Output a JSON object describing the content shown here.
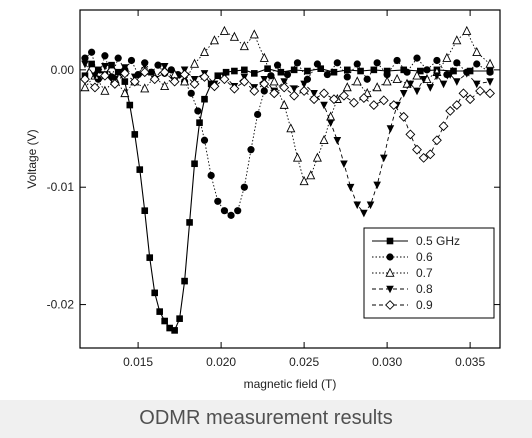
{
  "caption": "ODMR measurement results",
  "chart_data": {
    "type": "line",
    "title": "",
    "xlabel": "magnetic field (T)",
    "ylabel": "Voltage (V)",
    "xlim": [
      0.0115,
      0.0368
    ],
    "ylim": [
      -0.0237,
      0.0051
    ],
    "x_ticks": [
      0.015,
      0.02,
      0.025,
      0.03,
      0.035
    ],
    "x_tick_labels": [
      "0.015",
      "0.020",
      "0.025",
      "0.030",
      "0.035"
    ],
    "y_ticks": [
      0.0,
      -0.01,
      -0.02
    ],
    "y_tick_labels": [
      "0.00",
      "-0.01",
      "-0.02"
    ],
    "grid": false,
    "legend_position": "lower-right",
    "series": [
      {
        "name": "0.5 GHz",
        "marker": "square-filled",
        "dash": "solid",
        "points": [
          [
            0.0118,
            -0.0005
          ],
          [
            0.0122,
            0.0005
          ],
          [
            0.0126,
            0.0
          ],
          [
            0.013,
            -0.0004
          ],
          [
            0.0134,
            0.0004
          ],
          [
            0.0138,
            -0.0002
          ],
          [
            0.0142,
            -0.001
          ],
          [
            0.0145,
            -0.003
          ],
          [
            0.0148,
            -0.0055
          ],
          [
            0.0151,
            -0.0085
          ],
          [
            0.0154,
            -0.012
          ],
          [
            0.0157,
            -0.016
          ],
          [
            0.016,
            -0.019
          ],
          [
            0.0163,
            -0.0206
          ],
          [
            0.0166,
            -0.0214
          ],
          [
            0.0169,
            -0.022
          ],
          [
            0.0172,
            -0.0222
          ],
          [
            0.0175,
            -0.0212
          ],
          [
            0.0178,
            -0.018
          ],
          [
            0.0181,
            -0.013
          ],
          [
            0.0184,
            -0.008
          ],
          [
            0.0187,
            -0.0045
          ],
          [
            0.019,
            -0.0025
          ],
          [
            0.0194,
            -0.0012
          ],
          [
            0.0198,
            -0.0005
          ],
          [
            0.0203,
            -0.0002
          ],
          [
            0.0208,
            -0.0001
          ],
          [
            0.0214,
            0.0
          ],
          [
            0.022,
            -0.0003
          ],
          [
            0.0228,
            0.0001
          ],
          [
            0.0236,
            -0.0002
          ],
          [
            0.0244,
            0.0
          ],
          [
            0.0252,
            -0.0001
          ],
          [
            0.026,
            0.0001
          ],
          [
            0.0268,
            -0.0002
          ],
          [
            0.0276,
            0.0
          ],
          [
            0.0284,
            -0.0001
          ],
          [
            0.0292,
            0.0
          ],
          [
            0.03,
            -0.0001
          ],
          [
            0.031,
            0.0
          ],
          [
            0.032,
            -0.0001
          ],
          [
            0.033,
            0.0
          ],
          [
            0.034,
            -0.0001
          ],
          [
            0.035,
            -0.0001
          ],
          [
            0.0362,
            -0.0001
          ]
        ]
      },
      {
        "name": "0.6",
        "marker": "circle-filled",
        "dash": "dotted",
        "points": [
          [
            0.0118,
            0.001
          ],
          [
            0.0122,
            0.0015
          ],
          [
            0.0126,
            -0.0008
          ],
          [
            0.013,
            0.0012
          ],
          [
            0.0134,
            -0.0006
          ],
          [
            0.0138,
            0.001
          ],
          [
            0.0142,
            0.0
          ],
          [
            0.0146,
            0.0008
          ],
          [
            0.015,
            -0.0004
          ],
          [
            0.0154,
            0.0006
          ],
          [
            0.0158,
            -0.0002
          ],
          [
            0.0162,
            0.0004
          ],
          [
            0.0166,
            -0.0003
          ],
          [
            0.017,
            0.0
          ],
          [
            0.0174,
            -0.0004
          ],
          [
            0.0178,
            -0.001
          ],
          [
            0.0182,
            -0.002
          ],
          [
            0.0186,
            -0.0035
          ],
          [
            0.019,
            -0.006
          ],
          [
            0.0194,
            -0.009
          ],
          [
            0.0198,
            -0.0112
          ],
          [
            0.0202,
            -0.012
          ],
          [
            0.0206,
            -0.0124
          ],
          [
            0.021,
            -0.012
          ],
          [
            0.0214,
            -0.01
          ],
          [
            0.0218,
            -0.0068
          ],
          [
            0.0222,
            -0.0038
          ],
          [
            0.0226,
            -0.0018
          ],
          [
            0.023,
            -0.0005
          ],
          [
            0.0234,
            0.0004
          ],
          [
            0.024,
            -0.0004
          ],
          [
            0.0246,
            0.0006
          ],
          [
            0.0252,
            -0.0008
          ],
          [
            0.0258,
            0.0005
          ],
          [
            0.0264,
            -0.0004
          ],
          [
            0.027,
            0.0006
          ],
          [
            0.0276,
            -0.0006
          ],
          [
            0.0282,
            0.0005
          ],
          [
            0.0288,
            -0.0008
          ],
          [
            0.0294,
            0.0006
          ],
          [
            0.03,
            -0.0004
          ],
          [
            0.0306,
            0.0008
          ],
          [
            0.0312,
            -0.0002
          ],
          [
            0.0318,
            0.001
          ],
          [
            0.0324,
            0.0
          ],
          [
            0.033,
            0.0008
          ],
          [
            0.0336,
            -0.0004
          ],
          [
            0.0342,
            0.0006
          ],
          [
            0.0348,
            -0.0002
          ],
          [
            0.0354,
            0.0005
          ],
          [
            0.0362,
            -0.0002
          ]
        ]
      },
      {
        "name": "0.7",
        "marker": "triangle-open",
        "dash": "dotted",
        "points": [
          [
            0.0118,
            -0.0015
          ],
          [
            0.0124,
            -0.0005
          ],
          [
            0.013,
            -0.0018
          ],
          [
            0.0136,
            -0.0008
          ],
          [
            0.0142,
            -0.002
          ],
          [
            0.0148,
            -0.001
          ],
          [
            0.0154,
            -0.0016
          ],
          [
            0.016,
            -0.0006
          ],
          [
            0.0166,
            -0.0014
          ],
          [
            0.0172,
            -0.0004
          ],
          [
            0.0178,
            -0.001
          ],
          [
            0.0184,
            0.0005
          ],
          [
            0.019,
            0.0015
          ],
          [
            0.0196,
            0.0025
          ],
          [
            0.0202,
            0.0033
          ],
          [
            0.0208,
            0.0028
          ],
          [
            0.0214,
            0.002
          ],
          [
            0.022,
            0.003
          ],
          [
            0.0226,
            0.001
          ],
          [
            0.0232,
            -0.001
          ],
          [
            0.0238,
            -0.003
          ],
          [
            0.0242,
            -0.005
          ],
          [
            0.0246,
            -0.0075
          ],
          [
            0.025,
            -0.0095
          ],
          [
            0.0254,
            -0.009
          ],
          [
            0.0258,
            -0.0075
          ],
          [
            0.0262,
            -0.006
          ],
          [
            0.0266,
            -0.004
          ],
          [
            0.027,
            -0.0025
          ],
          [
            0.0276,
            -0.0015
          ],
          [
            0.0282,
            -0.001
          ],
          [
            0.0288,
            -0.002
          ],
          [
            0.0294,
            -0.0015
          ],
          [
            0.03,
            -0.001
          ],
          [
            0.0306,
            -0.0008
          ],
          [
            0.0312,
            -0.0012
          ],
          [
            0.0318,
            -0.0005
          ],
          [
            0.0324,
            -0.0008
          ],
          [
            0.033,
            -0.0002
          ],
          [
            0.0336,
            0.001
          ],
          [
            0.0342,
            0.0025
          ],
          [
            0.0348,
            0.0033
          ],
          [
            0.0354,
            0.0015
          ],
          [
            0.0362,
            0.0005
          ]
        ]
      },
      {
        "name": "0.8",
        "marker": "triangle-down-filled",
        "dash": "dashed",
        "points": [
          [
            0.0118,
            0.0005
          ],
          [
            0.0124,
            -0.0005
          ],
          [
            0.013,
            0.0003
          ],
          [
            0.0136,
            -0.0008
          ],
          [
            0.0142,
            0.0002
          ],
          [
            0.0148,
            -0.0006
          ],
          [
            0.0154,
            0.0004
          ],
          [
            0.016,
            -0.0008
          ],
          [
            0.0166,
            0.0003
          ],
          [
            0.0172,
            -0.001
          ],
          [
            0.0178,
            0.0
          ],
          [
            0.0184,
            -0.0008
          ],
          [
            0.019,
            -0.0003
          ],
          [
            0.0196,
            -0.0012
          ],
          [
            0.0202,
            -0.0005
          ],
          [
            0.0208,
            -0.0014
          ],
          [
            0.0214,
            -0.0006
          ],
          [
            0.022,
            -0.0015
          ],
          [
            0.0226,
            -0.0008
          ],
          [
            0.0232,
            -0.0018
          ],
          [
            0.0238,
            -0.001
          ],
          [
            0.0244,
            -0.0016
          ],
          [
            0.025,
            -0.0012
          ],
          [
            0.0256,
            -0.002
          ],
          [
            0.0262,
            -0.003
          ],
          [
            0.0266,
            -0.0045
          ],
          [
            0.027,
            -0.006
          ],
          [
            0.0274,
            -0.008
          ],
          [
            0.0278,
            -0.01
          ],
          [
            0.0282,
            -0.0115
          ],
          [
            0.0286,
            -0.0122
          ],
          [
            0.029,
            -0.0115
          ],
          [
            0.0294,
            -0.0098
          ],
          [
            0.0298,
            -0.0075
          ],
          [
            0.0302,
            -0.005
          ],
          [
            0.0306,
            -0.003
          ],
          [
            0.031,
            -0.002
          ],
          [
            0.0314,
            -0.0012
          ],
          [
            0.0318,
            -0.0018
          ],
          [
            0.0322,
            -0.0008
          ],
          [
            0.0326,
            -0.0015
          ],
          [
            0.033,
            -0.0005
          ],
          [
            0.0334,
            -0.0012
          ],
          [
            0.0338,
            -0.0004
          ],
          [
            0.0342,
            -0.001
          ],
          [
            0.0348,
            -0.0003
          ],
          [
            0.0354,
            -0.0012
          ],
          [
            0.0362,
            -0.001
          ]
        ]
      },
      {
        "name": "0.9",
        "marker": "diamond-open",
        "dash": "dashed",
        "points": [
          [
            0.0118,
            -0.0008
          ],
          [
            0.0124,
            -0.0015
          ],
          [
            0.013,
            -0.0005
          ],
          [
            0.0136,
            -0.0012
          ],
          [
            0.0142,
            -0.0003
          ],
          [
            0.0148,
            -0.001
          ],
          [
            0.0154,
            -0.0002
          ],
          [
            0.016,
            -0.0008
          ],
          [
            0.0166,
            -0.0002
          ],
          [
            0.0172,
            -0.001
          ],
          [
            0.0178,
            -0.0004
          ],
          [
            0.0184,
            -0.0012
          ],
          [
            0.019,
            -0.0006
          ],
          [
            0.0196,
            -0.0014
          ],
          [
            0.0202,
            -0.0008
          ],
          [
            0.0208,
            -0.0016
          ],
          [
            0.0214,
            -0.001
          ],
          [
            0.022,
            -0.0018
          ],
          [
            0.0226,
            -0.0012
          ],
          [
            0.0232,
            -0.002
          ],
          [
            0.0238,
            -0.0015
          ],
          [
            0.0244,
            -0.0022
          ],
          [
            0.025,
            -0.0018
          ],
          [
            0.0256,
            -0.0025
          ],
          [
            0.0262,
            -0.002
          ],
          [
            0.0268,
            -0.0025
          ],
          [
            0.0274,
            -0.0022
          ],
          [
            0.028,
            -0.0028
          ],
          [
            0.0286,
            -0.0024
          ],
          [
            0.0292,
            -0.003
          ],
          [
            0.0298,
            -0.0026
          ],
          [
            0.0304,
            -0.003
          ],
          [
            0.031,
            -0.004
          ],
          [
            0.0314,
            -0.0055
          ],
          [
            0.0318,
            -0.0068
          ],
          [
            0.0322,
            -0.0075
          ],
          [
            0.0326,
            -0.0072
          ],
          [
            0.033,
            -0.006
          ],
          [
            0.0334,
            -0.0048
          ],
          [
            0.0338,
            -0.0035
          ],
          [
            0.0342,
            -0.003
          ],
          [
            0.0346,
            -0.002
          ],
          [
            0.035,
            -0.0025
          ],
          [
            0.0356,
            -0.0018
          ],
          [
            0.0362,
            -0.002
          ]
        ]
      }
    ]
  }
}
